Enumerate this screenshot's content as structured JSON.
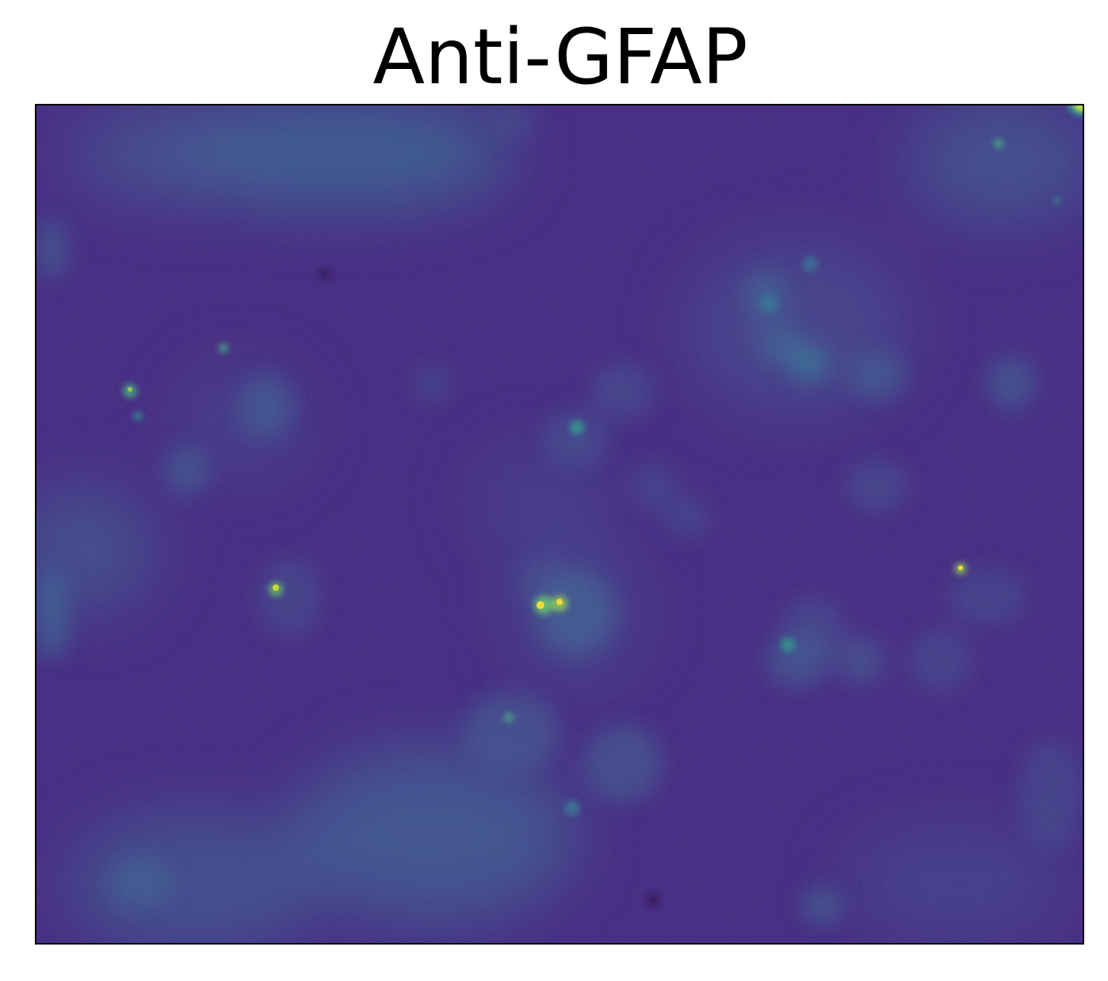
{
  "figure": {
    "title": "Anti-GFAP"
  },
  "image": {
    "description_role": "fluorescence-microscopy",
    "colormap": "viridis",
    "colors": {
      "background": "#3b1f78",
      "dim": "#462a85",
      "mid": "#2f5e8c",
      "bright": "#21918c",
      "peak": "#fde725",
      "frame": "#000000"
    },
    "axes_ticks": false
  }
}
